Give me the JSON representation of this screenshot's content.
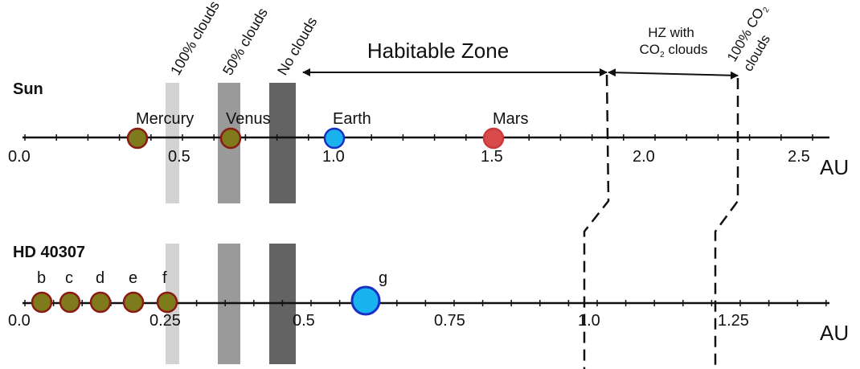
{
  "colors": {
    "clouds_100": "#d3d3d3",
    "clouds_50": "#9a9a9a",
    "clouds_none": "#636363",
    "rocky_fill": "#7f7a1c",
    "rocky_edge": "#8a1a14",
    "earth_fill": "#19b3f0",
    "earth_edge": "#1a2fc4",
    "mars_fill": "#d94a4a",
    "mars_edge": "#c83a3a"
  },
  "labels": {
    "clouds_100": "100% clouds",
    "clouds_50": "50% clouds",
    "clouds_none": "No clouds",
    "habitable_zone": "Habitable Zone",
    "hz_co2_line1": "HZ with",
    "hz_co2_line2_pre": "CO",
    "hz_co2_line2_sub": "2",
    "hz_co2_line2_post": " clouds",
    "co2_100_line1_pre": "100% CO",
    "co2_100_line1_sub": "2",
    "co2_100_line2": "clouds"
  },
  "systems": [
    {
      "name": "Sun",
      "unit": "AU",
      "ticks": [
        "0.0",
        "0.5",
        "1.0",
        "1.5",
        "2.0",
        "2.5"
      ],
      "planets": [
        {
          "label": "Mercury",
          "type": "rocky"
        },
        {
          "label": "Venus",
          "type": "rocky"
        },
        {
          "label": "Earth",
          "type": "earth"
        },
        {
          "label": "Mars",
          "type": "mars"
        }
      ]
    },
    {
      "name": "HD 40307",
      "unit": "AU",
      "ticks": [
        "0.0",
        "0.25",
        "0.5",
        "0.75",
        "1.0",
        "1.25"
      ],
      "planets": [
        {
          "label": "b",
          "type": "rocky"
        },
        {
          "label": "c",
          "type": "rocky"
        },
        {
          "label": "d",
          "type": "rocky"
        },
        {
          "label": "e",
          "type": "rocky"
        },
        {
          "label": "f",
          "type": "rocky"
        },
        {
          "label": "g",
          "type": "earth"
        }
      ]
    }
  ]
}
